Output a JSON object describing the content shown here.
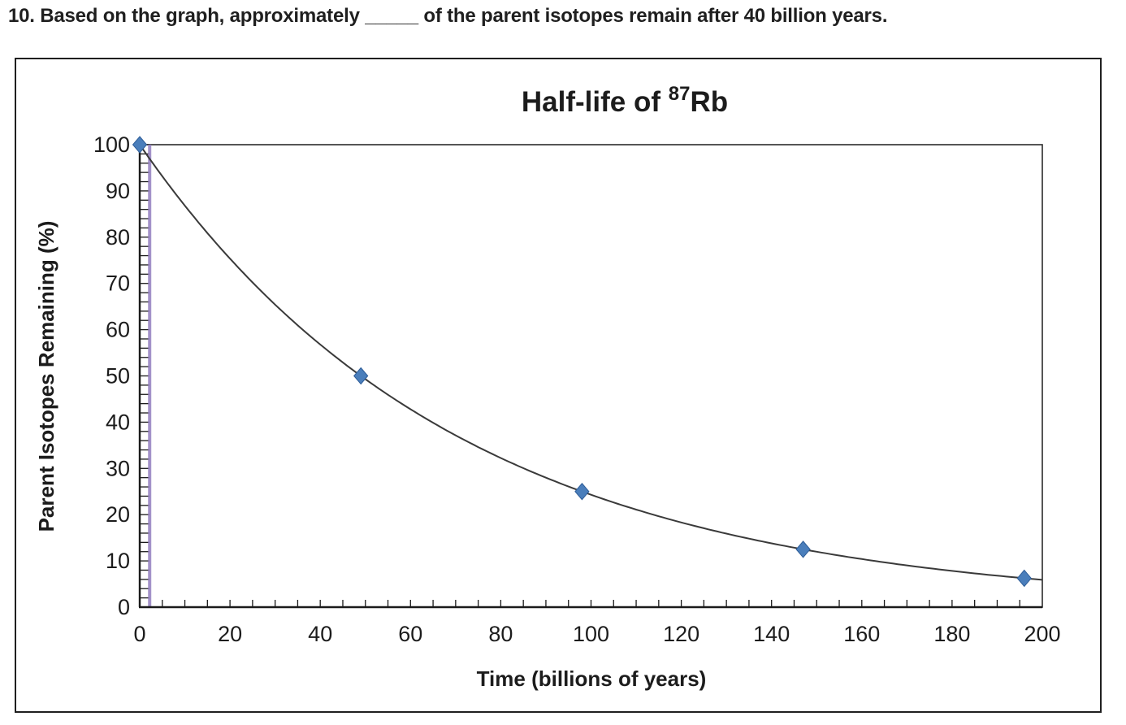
{
  "question": {
    "text": "10. Based on the graph, approximately _____ of the parent isotopes remain after 40 billion years."
  },
  "chart_data": {
    "type": "line",
    "title": {
      "prefix": "Half-life of ",
      "superscript": "87",
      "suffix": "Rb",
      "full": "Half-life of 87Rb"
    },
    "xlabel": "Time (billions of years)",
    "ylabel": "Parent Isotopes Remaining (%)",
    "xlim": [
      0,
      200
    ],
    "ylim": [
      0,
      100
    ],
    "x_tick_labels": [
      0,
      20,
      40,
      60,
      80,
      100,
      120,
      140,
      160,
      180,
      200
    ],
    "y_tick_labels": [
      0,
      10,
      20,
      30,
      40,
      50,
      60,
      70,
      80,
      90,
      100
    ],
    "x_minor_step": 5,
    "y_minor_step": 2,
    "grid": false,
    "legend": "none",
    "series": [
      {
        "name": "parent-isotopes-remaining",
        "points": [
          {
            "x": 0,
            "y": 100
          },
          {
            "x": 49,
            "y": 50
          },
          {
            "x": 98,
            "y": 25
          },
          {
            "x": 147,
            "y": 12.5
          },
          {
            "x": 196,
            "y": 6.25
          }
        ],
        "curve": {
          "model": "exponential-decay",
          "start_value": 100,
          "half_life": 49,
          "x_end": 200
        }
      }
    ],
    "reference_line": {
      "orientation": "vertical",
      "x": 2.2,
      "color": "#947fc0"
    },
    "colors": {
      "marker_fill": "#4a7ebb",
      "marker_stroke": "#2f5e99",
      "curve": "#3a3a3a",
      "axis": "#1a1a1a",
      "plot_border": "#2b2b2b",
      "text": "#1c1c1c"
    }
  }
}
